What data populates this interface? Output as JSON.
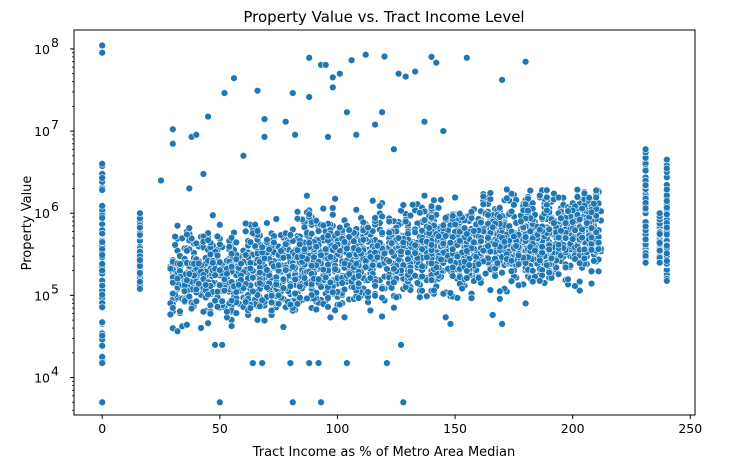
{
  "chart_data": {
    "type": "scatter",
    "title": "Property Value vs. Tract Income Level",
    "xlabel": "Tract Income as % of Metro Area Median",
    "ylabel": "Property Value",
    "xlim": [
      -12,
      252
    ],
    "ylim": [
      3500,
      170000000
    ],
    "yscale": "log",
    "grid": false,
    "color": "#1f77b4",
    "x_ticks": [
      0,
      50,
      100,
      150,
      200,
      250
    ],
    "x_tick_labels": [
      "0",
      "50",
      "100",
      "150",
      "200",
      "250"
    ],
    "y_ticks": [
      10000,
      100000,
      1000000,
      10000000,
      100000000
    ],
    "y_tick_labels": [
      {
        "base": "10",
        "exp": "4"
      },
      {
        "base": "10",
        "exp": "5"
      },
      {
        "base": "10",
        "exp": "6"
      },
      {
        "base": "10",
        "exp": "7"
      },
      {
        "base": "10",
        "exp": "8"
      }
    ],
    "columns": [
      {
        "x": 0,
        "min": 15000,
        "max": 4000000
      },
      {
        "x": 16,
        "min": 120000,
        "max": 1000000
      },
      {
        "x": 231,
        "min": 250000,
        "max": 6000000
      },
      {
        "x": 237,
        "min": 250000,
        "max": 1000000
      },
      {
        "x": 240,
        "min": 150000,
        "max": 4500000
      }
    ],
    "body": {
      "x_min": 29,
      "x_max": 212,
      "y_low": 35000,
      "y_high": 2000000
    },
    "outliers": [
      [
        0,
        110000000
      ],
      [
        0,
        90000000
      ],
      [
        0,
        5000
      ],
      [
        50,
        5000
      ],
      [
        81,
        5000
      ],
      [
        93,
        5000
      ],
      [
        128,
        5000
      ],
      [
        30,
        10500000
      ],
      [
        30,
        7000000
      ],
      [
        38,
        8500000
      ],
      [
        40,
        9000000
      ],
      [
        45,
        15000000
      ],
      [
        52,
        29000000
      ],
      [
        56,
        44000000
      ],
      [
        60,
        5000000
      ],
      [
        66,
        31000000
      ],
      [
        69,
        14000000
      ],
      [
        69,
        8500000
      ],
      [
        78,
        13000000
      ],
      [
        81,
        29000000
      ],
      [
        82,
        9000000
      ],
      [
        88,
        26000000
      ],
      [
        88,
        78000000
      ],
      [
        93,
        64000000
      ],
      [
        95,
        64000000
      ],
      [
        96,
        8500000
      ],
      [
        98,
        34000000
      ],
      [
        98,
        45000000
      ],
      [
        101,
        50000000
      ],
      [
        104,
        17000000
      ],
      [
        106,
        73000000
      ],
      [
        108,
        9000000
      ],
      [
        112,
        85000000
      ],
      [
        116,
        12000000
      ],
      [
        119,
        17000000
      ],
      [
        120,
        81000000
      ],
      [
        124,
        6000000
      ],
      [
        126,
        50000000
      ],
      [
        129,
        46000000
      ],
      [
        133,
        53000000
      ],
      [
        137,
        13000000
      ],
      [
        140,
        80000000
      ],
      [
        142,
        68000000
      ],
      [
        145,
        10000000
      ],
      [
        155,
        78000000
      ],
      [
        170,
        42000000
      ],
      [
        180,
        70000000
      ],
      [
        25,
        2500000
      ],
      [
        37,
        2000000
      ],
      [
        43,
        3000000
      ],
      [
        48,
        25000
      ],
      [
        51,
        25000
      ],
      [
        64,
        15000
      ],
      [
        68,
        15000
      ],
      [
        80,
        15000
      ],
      [
        88,
        15000
      ],
      [
        92,
        15000
      ],
      [
        104,
        15000
      ],
      [
        121,
        15000
      ],
      [
        127,
        25000
      ],
      [
        148,
        45000
      ],
      [
        170,
        45000
      ],
      [
        180,
        80000
      ],
      [
        186,
        150000
      ]
    ]
  }
}
